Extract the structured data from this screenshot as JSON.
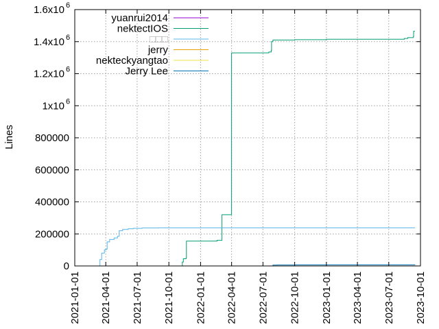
{
  "chart_data": {
    "type": "line",
    "title": "",
    "xlabel": "",
    "ylabel": "Lines",
    "x_type": "date",
    "xlim": [
      "2021-01-01",
      "2023-10-01"
    ],
    "ylim": [
      0,
      1600000
    ],
    "grid": true,
    "legend_position": "top-left",
    "y_ticks": [
      {
        "value": 0,
        "label": "0",
        "exp": ""
      },
      {
        "value": 200000,
        "label": "200000",
        "exp": ""
      },
      {
        "value": 400000,
        "label": "400000",
        "exp": ""
      },
      {
        "value": 600000,
        "label": "600000",
        "exp": ""
      },
      {
        "value": 800000,
        "label": "800000",
        "exp": ""
      },
      {
        "value": 1000000,
        "label": "1x10",
        "exp": "6"
      },
      {
        "value": 1200000,
        "label": "1.2x10",
        "exp": "6"
      },
      {
        "value": 1400000,
        "label": "1.4x10",
        "exp": "6"
      },
      {
        "value": 1600000,
        "label": "1.6x10",
        "exp": "6"
      }
    ],
    "x_ticks": [
      "2021-01-01",
      "2021-04-01",
      "2021-07-01",
      "2021-10-01",
      "2022-01-01",
      "2022-04-01",
      "2022-07-01",
      "2022-10-01",
      "2023-01-01",
      "2023-04-01",
      "2023-07-01",
      "2023-10-01"
    ],
    "series": [
      {
        "name": "yuanrui2014",
        "color": "#9400d3",
        "points": []
      },
      {
        "name": "nektectIOS",
        "color": "#009e73",
        "points": [
          [
            "2021-11-09",
            0
          ],
          [
            "2021-11-09",
            25000
          ],
          [
            "2021-11-12",
            45000
          ],
          [
            "2021-11-20",
            50000
          ],
          [
            "2021-11-21",
            155000
          ],
          [
            "2022-02-18",
            160000
          ],
          [
            "2022-03-03",
            160000
          ],
          [
            "2022-03-04",
            320000
          ],
          [
            "2022-03-31",
            320000
          ],
          [
            "2022-04-01",
            1330000
          ],
          [
            "2022-07-18",
            1335000
          ],
          [
            "2022-07-25",
            1345000
          ],
          [
            "2022-07-26",
            1400000
          ],
          [
            "2022-07-30",
            1410000
          ],
          [
            "2022-10-01",
            1412000
          ],
          [
            "2023-01-01",
            1415000
          ],
          [
            "2023-08-15",
            1420000
          ],
          [
            "2023-08-25",
            1425000
          ],
          [
            "2023-09-10",
            1430000
          ],
          [
            "2023-09-11",
            1465000
          ],
          [
            "2023-09-15",
            1465000
          ]
        ]
      },
      {
        "name": "□□□",
        "color": "#56b4e9",
        "points": [
          [
            "2021-03-09",
            0
          ],
          [
            "2021-03-15",
            40000
          ],
          [
            "2021-03-20",
            80000
          ],
          [
            "2021-03-28",
            100000
          ],
          [
            "2021-04-01",
            105000
          ],
          [
            "2021-04-05",
            150000
          ],
          [
            "2021-04-12",
            165000
          ],
          [
            "2021-04-25",
            175000
          ],
          [
            "2021-05-05",
            185000
          ],
          [
            "2021-05-10",
            220000
          ],
          [
            "2021-05-20",
            228000
          ],
          [
            "2021-06-05",
            232000
          ],
          [
            "2021-06-20",
            235000
          ],
          [
            "2021-07-15",
            237000
          ],
          [
            "2021-09-01",
            238000
          ],
          [
            "2022-03-31",
            238000
          ],
          [
            "2023-09-15",
            238000
          ]
        ]
      },
      {
        "name": "jerry",
        "color": "#e69f00",
        "points": []
      },
      {
        "name": "nekteckyangtao",
        "color": "#f0e442",
        "points": []
      },
      {
        "name": "Jerry Lee",
        "color": "#0072b2",
        "points": [
          [
            "2022-07-25",
            0
          ],
          [
            "2022-07-30",
            5000
          ],
          [
            "2022-08-10",
            6000
          ],
          [
            "2022-10-01",
            6500
          ],
          [
            "2023-01-01",
            7000
          ],
          [
            "2023-09-15",
            7500
          ]
        ]
      }
    ]
  }
}
